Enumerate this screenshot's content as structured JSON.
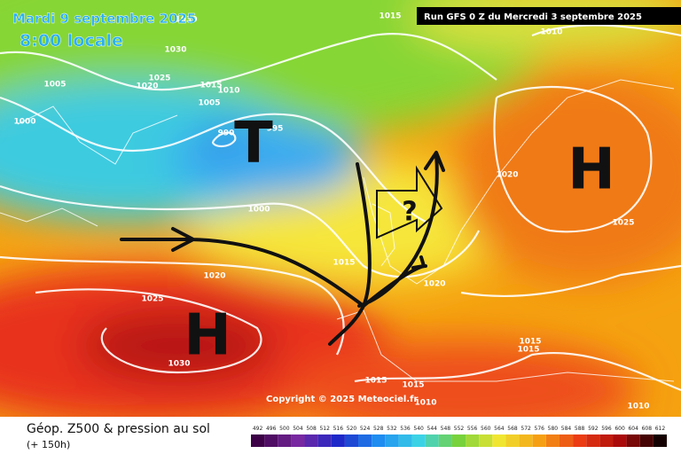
{
  "header": {
    "date": "Mardi 9 septembre 2025",
    "time": "8:00 locale",
    "run": "Run GFS 0 Z du Mercredi 3 septembre 2025"
  },
  "map": {
    "isobar_labels": [
      1030,
      1015,
      1010,
      1030,
      1025,
      1005,
      1020,
      1015,
      1010,
      1005,
      1000,
      990,
      995,
      1020,
      1000,
      1025,
      1015,
      1020,
      1020,
      1025,
      1015,
      1015,
      1030,
      1015,
      1015,
      1010,
      1010
    ],
    "symbols": [
      "T",
      "H",
      "H",
      "?"
    ],
    "copyright": "Copyright © 2025 Meteociel.fr"
  },
  "footer": {
    "title": "Géop. Z500 & pression au sol",
    "lead": "(+ 150h)"
  },
  "legend": {
    "scale": [
      492,
      496,
      500,
      504,
      508,
      512,
      516,
      520,
      524,
      528,
      532,
      536,
      540,
      544,
      548,
      552,
      556,
      560,
      564,
      568,
      572,
      576,
      580,
      584,
      588,
      592,
      596,
      600,
      604,
      608,
      612
    ]
  }
}
